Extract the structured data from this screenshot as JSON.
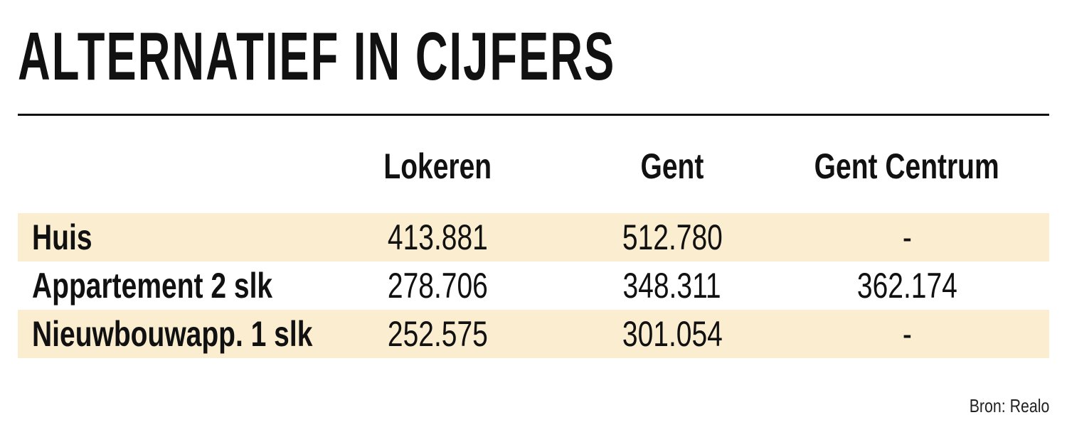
{
  "chart_data": {
    "type": "table",
    "title": "ALTERNATIEF IN CIJFERS",
    "columns": [
      "Lokeren",
      "Gent",
      "Gent Centrum"
    ],
    "rows": [
      {
        "label": "Huis",
        "values": [
          "413.881",
          "512.780",
          "-"
        ]
      },
      {
        "label": "Appartement 2 slk",
        "values": [
          "278.706",
          "348.311",
          "362.174"
        ]
      },
      {
        "label": "Nieuwbouwapp. 1 slk",
        "values": [
          "252.575",
          "301.054",
          "-"
        ]
      }
    ],
    "source": "Bron: Realo",
    "row_shading_color": "#fbeed0"
  }
}
